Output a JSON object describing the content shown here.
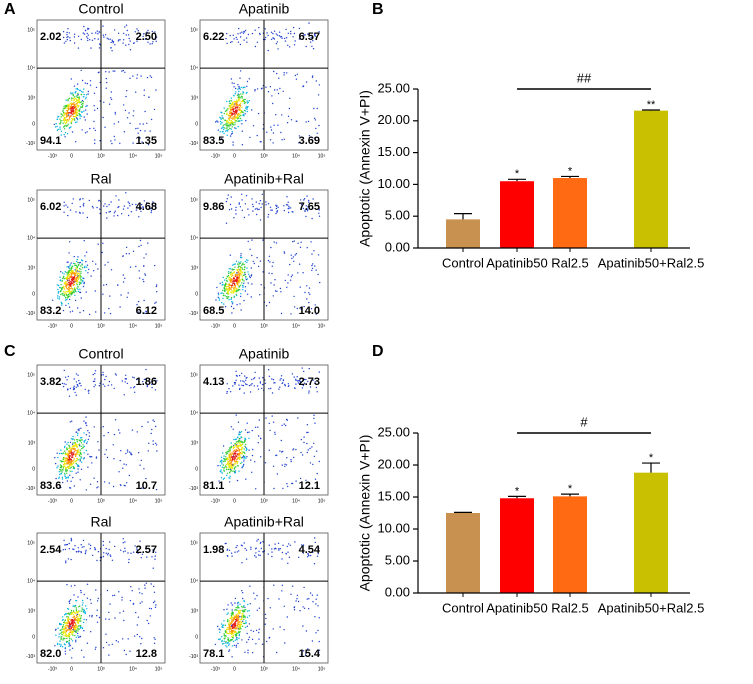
{
  "panel_labels": [
    "A",
    "B",
    "C",
    "D"
  ],
  "flow_panels": [
    {
      "xtick_labels": [
        "-10³",
        "0",
        "10³",
        "10⁴",
        "10⁵"
      ],
      "ytick_labels": [
        "10⁵",
        "10⁴",
        "10³",
        "0",
        "-10³"
      ],
      "plots": [
        {
          "title": "Control",
          "quadrants": [
            "2.02",
            "2.50",
            "94.1",
            "1.35"
          ]
        },
        {
          "title": "Apatinib",
          "quadrants": [
            "6.22",
            "6.57",
            "83.5",
            "3.69"
          ]
        },
        {
          "title": "Ral",
          "quadrants": [
            "6.02",
            "4.68",
            "83.2",
            "6.12"
          ]
        },
        {
          "title": "Apatinib+Ral",
          "quadrants": [
            "9.86",
            "7.65",
            "68.5",
            "14.0"
          ]
        }
      ]
    },
    {
      "xtick_labels": [
        "-10³",
        "0",
        "10³",
        "10⁴",
        "10⁵"
      ],
      "ytick_labels": [
        "10⁵",
        "10⁴",
        "10³",
        "0",
        "-10³"
      ],
      "plots": [
        {
          "title": "Control",
          "quadrants": [
            "3.82",
            "1.86",
            "83.6",
            "10.7"
          ]
        },
        {
          "title": "Apatinib",
          "quadrants": [
            "4.13",
            "2.73",
            "81.1",
            "12.1"
          ]
        },
        {
          "title": "Ral",
          "quadrants": [
            "2.54",
            "2.57",
            "82.0",
            "12.8"
          ]
        },
        {
          "title": "Apatinib+Ral",
          "quadrants": [
            "1.98",
            "4.54",
            "78.1",
            "15.4"
          ]
        }
      ]
    }
  ],
  "chart_data": [
    {
      "type": "bar",
      "ylabel": "Apoptotic (Annexin V+PI)",
      "categories": [
        "Control",
        "Apatinib50",
        "Ral2.5",
        "Apatinib50+Ral2.5"
      ],
      "values": [
        4.5,
        10.5,
        11.0,
        21.6
      ],
      "errors": [
        0.9,
        0.3,
        0.25,
        0.1
      ],
      "colors": [
        "#c8914f",
        "#ff0000",
        "#ff6a13",
        "#c8c000"
      ],
      "significance": [
        null,
        "*",
        "*",
        "**"
      ],
      "bracket": {
        "categories": [
          "Apatinib50",
          "Apatinib50+Ral2.5"
        ],
        "label": "##"
      },
      "ylim": [
        0,
        25
      ],
      "yticks": [
        {
          "value": 0,
          "label": "0.00"
        },
        {
          "value": 5,
          "label": "5.00"
        },
        {
          "value": 10,
          "label": "10.00"
        },
        {
          "value": 15,
          "label": "15.00"
        },
        {
          "value": 20,
          "label": "20.00"
        },
        {
          "value": 25,
          "label": "25.00"
        }
      ]
    },
    {
      "type": "bar",
      "ylabel": "Apoptotic (Annexin V+PI)",
      "categories": [
        "Control",
        "Apatinib50",
        "Ral2.5",
        "Apatinib50+Ral2.5"
      ],
      "values": [
        12.5,
        14.8,
        15.1,
        18.8
      ],
      "errors": [
        0.1,
        0.3,
        0.35,
        1.5
      ],
      "colors": [
        "#c8914f",
        "#ff0000",
        "#ff6a13",
        "#c8c000"
      ],
      "significance": [
        null,
        "*",
        "*",
        "*"
      ],
      "bracket": {
        "categories": [
          "Apatinib50",
          "Apatinib50+Ral2.5"
        ],
        "label": "#"
      },
      "ylim": [
        0,
        25
      ],
      "yticks": [
        {
          "value": 0,
          "label": "0.00"
        },
        {
          "value": 5,
          "label": "5.00"
        },
        {
          "value": 10,
          "label": "10.00"
        },
        {
          "value": 15,
          "label": "15.00"
        },
        {
          "value": 20,
          "label": "20.00"
        },
        {
          "value": 25,
          "label": "25.00"
        }
      ]
    }
  ]
}
